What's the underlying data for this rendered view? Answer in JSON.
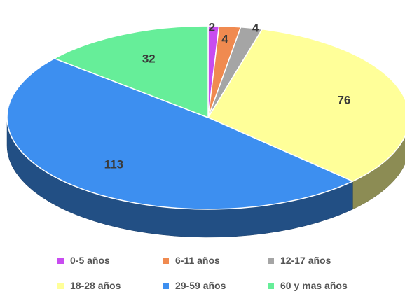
{
  "chart_data": {
    "type": "pie",
    "style": "3d",
    "title": "",
    "categories": [
      "0-5 años",
      "6-11 años",
      "12-17 años",
      "18-28 años",
      "29-59 años",
      "60 y mas años"
    ],
    "values": [
      2,
      4,
      4,
      76,
      113,
      32
    ],
    "data_labels": [
      "2",
      "4",
      "4",
      "76",
      "113",
      "32"
    ],
    "colors": [
      "#c84cf0",
      "#f08a50",
      "#a5a5a5",
      "#ffff99",
      "#3d8ff0",
      "#66ee99"
    ],
    "legend_position": "bottom"
  }
}
